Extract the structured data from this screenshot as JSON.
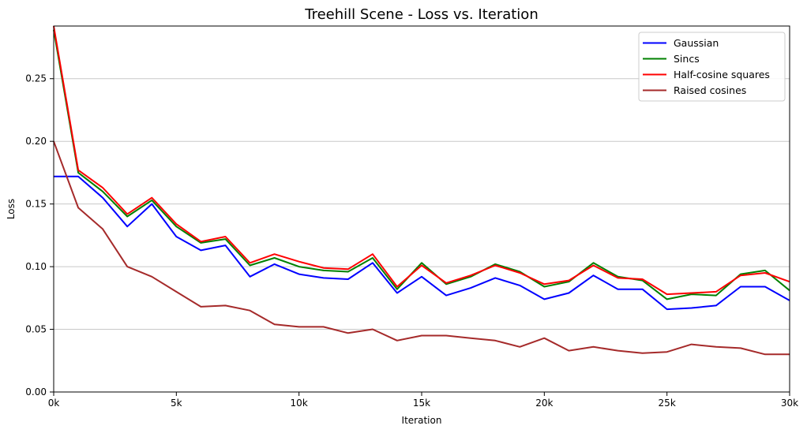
{
  "chart_data": {
    "type": "line",
    "title": "Treehill Scene - Loss vs. Iteration",
    "xlabel": "Iteration",
    "ylabel": "Loss",
    "xlim": [
      0,
      30000
    ],
    "ylim": [
      0,
      0.292
    ],
    "grid": "horizontal",
    "grid_color": "#c8c8c8",
    "legend_position": "upper right",
    "x_tick_labels": [
      "0k",
      "5k",
      "10k",
      "15k",
      "20k",
      "25k",
      "30k"
    ],
    "x_tick_values": [
      0,
      5000,
      10000,
      15000,
      20000,
      25000,
      30000
    ],
    "y_tick_labels": [
      "0.00",
      "0.05",
      "0.10",
      "0.15",
      "0.20",
      "0.25"
    ],
    "y_tick_values": [
      0.0,
      0.05,
      0.1,
      0.15,
      0.2,
      0.25
    ],
    "x": [
      0,
      1000,
      2000,
      3000,
      4000,
      5000,
      6000,
      7000,
      8000,
      9000,
      10000,
      11000,
      12000,
      13000,
      14000,
      15000,
      16000,
      17000,
      18000,
      19000,
      20000,
      21000,
      22000,
      23000,
      24000,
      25000,
      26000,
      27000,
      28000,
      29000,
      30000
    ],
    "series": [
      {
        "name": "Gaussian",
        "color": "#0000ff",
        "values": [
          0.172,
          0.172,
          0.155,
          0.132,
          0.15,
          0.124,
          0.113,
          0.117,
          0.092,
          0.102,
          0.094,
          0.091,
          0.09,
          0.103,
          0.079,
          0.092,
          0.077,
          0.083,
          0.091,
          0.085,
          0.074,
          0.079,
          0.093,
          0.082,
          0.082,
          0.066,
          0.067,
          0.069,
          0.084,
          0.084,
          0.073
        ]
      },
      {
        "name": "Sincs",
        "color": "#008000",
        "values": [
          0.289,
          0.175,
          0.16,
          0.14,
          0.153,
          0.132,
          0.119,
          0.122,
          0.101,
          0.107,
          0.1,
          0.097,
          0.096,
          0.107,
          0.082,
          0.103,
          0.086,
          0.092,
          0.102,
          0.096,
          0.084,
          0.088,
          0.103,
          0.092,
          0.089,
          0.074,
          0.078,
          0.077,
          0.094,
          0.097,
          0.081
        ]
      },
      {
        "name": "Half-cosine squares",
        "color": "#ff0000",
        "values": [
          0.292,
          0.177,
          0.163,
          0.142,
          0.155,
          0.134,
          0.12,
          0.124,
          0.103,
          0.11,
          0.104,
          0.099,
          0.098,
          0.11,
          0.084,
          0.101,
          0.087,
          0.093,
          0.101,
          0.095,
          0.086,
          0.089,
          0.101,
          0.091,
          0.09,
          0.078,
          0.079,
          0.08,
          0.093,
          0.095,
          0.088
        ]
      },
      {
        "name": "Raised cosines",
        "color": "#a52a2a",
        "values": [
          0.2,
          0.147,
          0.13,
          0.1,
          0.092,
          0.08,
          0.068,
          0.069,
          0.065,
          0.054,
          0.052,
          0.052,
          0.047,
          0.05,
          0.041,
          0.045,
          0.045,
          0.043,
          0.041,
          0.036,
          0.043,
          0.033,
          0.036,
          0.033,
          0.031,
          0.032,
          0.038,
          0.036,
          0.035,
          0.03,
          0.03
        ]
      }
    ]
  }
}
